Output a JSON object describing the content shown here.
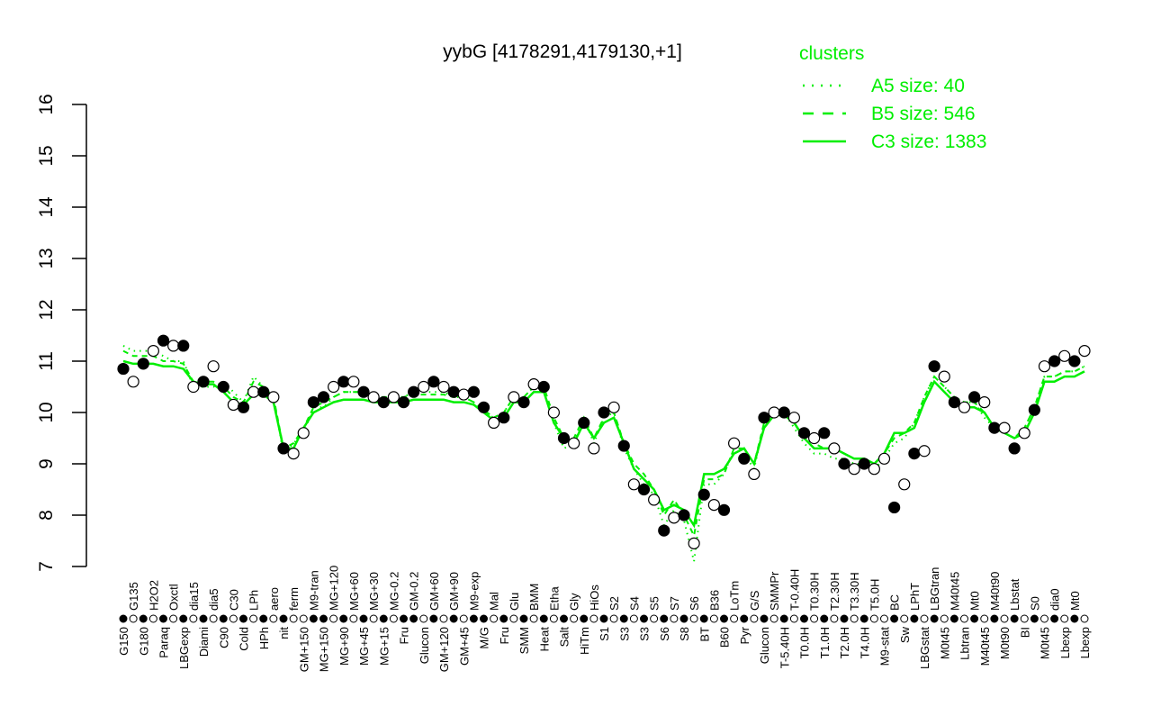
{
  "chart_data": {
    "type": "scatter",
    "title": "yybG [4178291,4179130,+1]",
    "xlabel": "",
    "ylabel": "",
    "ylim": [
      7,
      16
    ],
    "yticks": [
      7,
      8,
      9,
      10,
      11,
      12,
      13,
      14,
      15,
      16
    ],
    "grid": false,
    "legend": {
      "title": "clusters",
      "placement": "top-right",
      "color": "#00ee00",
      "entries": [
        {
          "label": "A5 size: 40",
          "style": "dotted"
        },
        {
          "label": "B5 size: 546",
          "style": "dashed"
        },
        {
          "label": "C3 size: 1383",
          "style": "solid"
        }
      ]
    },
    "point_color": "#000000",
    "line_color": "#00ee00",
    "categories": [
      "G150",
      "G135",
      "G180",
      "H2O2",
      "Paraq",
      "Oxctl",
      "LBGexp",
      "dia15",
      "Diami",
      "dia5",
      "C90",
      "C30",
      "Cold",
      "LPh",
      "HPh",
      "aero",
      "nit",
      "ferm",
      "GM+150",
      "M9-tran",
      "MG+150",
      "MG+120",
      "MG+90",
      "MG+60",
      "MG+45",
      "MG+30",
      "MG+15",
      "MG-0.2",
      "Fru",
      "GM-0.2",
      "Glucon",
      "GM+60",
      "GM+120",
      "GM+90",
      "GM+45",
      "M9-exp",
      "M/G",
      "Mal",
      "Fru",
      "Glu",
      "SMM",
      "BMM",
      "Heat",
      "Etha",
      "Salt",
      "Gly",
      "HiTm",
      "HiOs",
      "S1",
      "S2",
      "S3",
      "S4",
      "S3",
      "S5",
      "S6",
      "S7",
      "S8",
      "S6",
      "BT",
      "B36",
      "B60",
      "LoTm",
      "Pyr",
      "G/S",
      "Glucon",
      "SMMPr",
      "T-5.40H",
      "T-0.40H",
      "T0.0H",
      "T0.30H",
      "T1.0H",
      "T2.30H",
      "T2.0H",
      "T3.30H",
      "T4.0H",
      "T5.0H",
      "M9-stat",
      "BC",
      "Sw",
      "LPhT",
      "LBGstat",
      "LBGtran",
      "M0t45",
      "M40t45",
      "Lbtran",
      "Mt0",
      "M40t45",
      "M40t90",
      "M0t90",
      "Lbstat",
      "BI",
      "S0",
      "M0t45",
      "dia0",
      "Lbexp",
      "Mt0",
      "Lbexp"
    ],
    "values": [
      10.85,
      10.6,
      10.95,
      11.2,
      11.4,
      11.3,
      11.3,
      10.5,
      10.6,
      10.9,
      10.5,
      10.15,
      10.1,
      10.4,
      10.4,
      10.3,
      9.3,
      9.2,
      9.6,
      10.2,
      10.3,
      10.5,
      10.6,
      10.6,
      10.4,
      10.3,
      10.2,
      10.3,
      10.2,
      10.4,
      10.5,
      10.6,
      10.5,
      10.4,
      10.35,
      10.4,
      10.1,
      9.8,
      9.9,
      10.3,
      10.2,
      10.55,
      10.5,
      10.0,
      9.5,
      9.4,
      9.8,
      9.3,
      10.0,
      10.1,
      9.35,
      8.6,
      8.5,
      8.3,
      7.7,
      7.95,
      8.0,
      7.45,
      8.4,
      8.2,
      8.1,
      9.4,
      9.1,
      8.8,
      9.9,
      10.0,
      10.0,
      9.9,
      9.6,
      9.5,
      9.6,
      9.3,
      9.0,
      8.9,
      9.0,
      8.9,
      9.1,
      8.15,
      8.6,
      9.2,
      9.25,
      10.9,
      10.7,
      10.2,
      10.1,
      10.3,
      10.2,
      9.7,
      9.7,
      9.3,
      9.6,
      10.05,
      10.9,
      11.0,
      11.1,
      11.0,
      11.2
    ],
    "filled": [
      1,
      0,
      1,
      0,
      1,
      0,
      1,
      0,
      1,
      0,
      1,
      0,
      1,
      0,
      1,
      0,
      1,
      0,
      0,
      1,
      1,
      0,
      1,
      0,
      1,
      0,
      1,
      0,
      1,
      1,
      0,
      1,
      0,
      1,
      0,
      1,
      1,
      0,
      1,
      0,
      1,
      0,
      1,
      0,
      1,
      0,
      1,
      0,
      1,
      0,
      1,
      0,
      1,
      0,
      1,
      0,
      1,
      0,
      1,
      0,
      1,
      0,
      1,
      0,
      1,
      0,
      1,
      0,
      1,
      0,
      1,
      0,
      1,
      0,
      1,
      0,
      0,
      1,
      0,
      1,
      0,
      1,
      0,
      1,
      0,
      1,
      0,
      1,
      0,
      1,
      0,
      1,
      0,
      1,
      0,
      1,
      0
    ],
    "series": [
      {
        "name": "C3",
        "style": "solid",
        "values": [
          11.0,
          10.95,
          10.95,
          10.95,
          10.9,
          10.9,
          10.85,
          10.6,
          10.55,
          10.55,
          10.4,
          10.2,
          10.15,
          10.35,
          10.35,
          10.2,
          9.3,
          9.3,
          9.7,
          10.0,
          10.1,
          10.2,
          10.25,
          10.25,
          10.25,
          10.2,
          10.2,
          10.2,
          10.2,
          10.25,
          10.25,
          10.25,
          10.25,
          10.2,
          10.2,
          10.15,
          10.0,
          9.85,
          9.9,
          10.2,
          10.2,
          10.4,
          10.4,
          9.8,
          9.5,
          9.4,
          9.8,
          9.5,
          9.8,
          9.9,
          9.4,
          8.9,
          8.7,
          8.5,
          8.1,
          8.2,
          8.1,
          7.8,
          8.8,
          8.8,
          8.9,
          9.2,
          9.3,
          9.0,
          9.7,
          9.95,
          9.95,
          9.8,
          9.5,
          9.3,
          9.3,
          9.3,
          9.2,
          9.1,
          9.1,
          9.0,
          9.2,
          9.6,
          9.6,
          9.7,
          10.2,
          10.6,
          10.4,
          10.2,
          10.1,
          10.1,
          10.0,
          9.7,
          9.6,
          9.5,
          9.6,
          10.0,
          10.6,
          10.6,
          10.7,
          10.7,
          10.8
        ]
      },
      {
        "name": "B5",
        "style": "dashed",
        "values": [
          11.2,
          11.1,
          11.1,
          11.1,
          11.0,
          11.0,
          10.95,
          10.6,
          10.6,
          10.6,
          10.5,
          10.3,
          10.2,
          10.6,
          10.5,
          10.3,
          9.3,
          9.4,
          9.7,
          10.1,
          10.2,
          10.3,
          10.4,
          10.4,
          10.4,
          10.3,
          10.3,
          10.3,
          10.3,
          10.35,
          10.35,
          10.35,
          10.35,
          10.3,
          10.3,
          10.2,
          10.05,
          9.9,
          10.0,
          10.3,
          10.3,
          10.5,
          10.5,
          9.9,
          9.5,
          9.5,
          9.9,
          9.5,
          9.9,
          10.0,
          9.4,
          9.0,
          8.8,
          8.5,
          8.0,
          8.3,
          8.0,
          7.6,
          8.7,
          8.7,
          8.8,
          9.3,
          9.3,
          9.0,
          9.8,
          10.0,
          10.0,
          9.8,
          9.5,
          9.4,
          9.3,
          9.3,
          9.2,
          9.1,
          9.1,
          9.0,
          9.2,
          9.5,
          9.6,
          9.8,
          10.3,
          10.7,
          10.5,
          10.3,
          10.2,
          10.2,
          10.0,
          9.7,
          9.6,
          9.5,
          9.7,
          10.1,
          10.7,
          10.7,
          10.8,
          10.8,
          10.9
        ]
      },
      {
        "name": "A5",
        "style": "dotted",
        "values": [
          11.3,
          11.2,
          11.2,
          11.2,
          11.1,
          11.0,
          11.0,
          10.5,
          10.5,
          10.5,
          10.6,
          10.4,
          10.2,
          10.7,
          10.5,
          10.3,
          9.2,
          9.4,
          9.6,
          10.1,
          10.1,
          10.3,
          10.4,
          10.4,
          10.4,
          10.3,
          10.3,
          10.3,
          10.3,
          10.4,
          10.4,
          10.4,
          10.4,
          10.3,
          10.3,
          10.2,
          10.0,
          9.9,
          10.0,
          10.3,
          10.3,
          10.5,
          10.4,
          9.8,
          9.3,
          9.4,
          9.9,
          9.4,
          9.9,
          10.0,
          9.3,
          8.9,
          8.6,
          8.4,
          7.8,
          8.1,
          7.9,
          7.1,
          8.6,
          8.6,
          8.8,
          9.3,
          9.2,
          8.9,
          9.8,
          10.0,
          10.0,
          9.7,
          9.4,
          9.2,
          9.2,
          9.1,
          9.1,
          9.0,
          9.0,
          8.9,
          9.1,
          9.4,
          9.5,
          9.8,
          10.3,
          10.7,
          10.5,
          10.3,
          10.2,
          10.2,
          9.9,
          9.7,
          9.6,
          9.5,
          9.7,
          10.1,
          10.7,
          10.7,
          10.8,
          10.8,
          10.9
        ]
      }
    ]
  }
}
